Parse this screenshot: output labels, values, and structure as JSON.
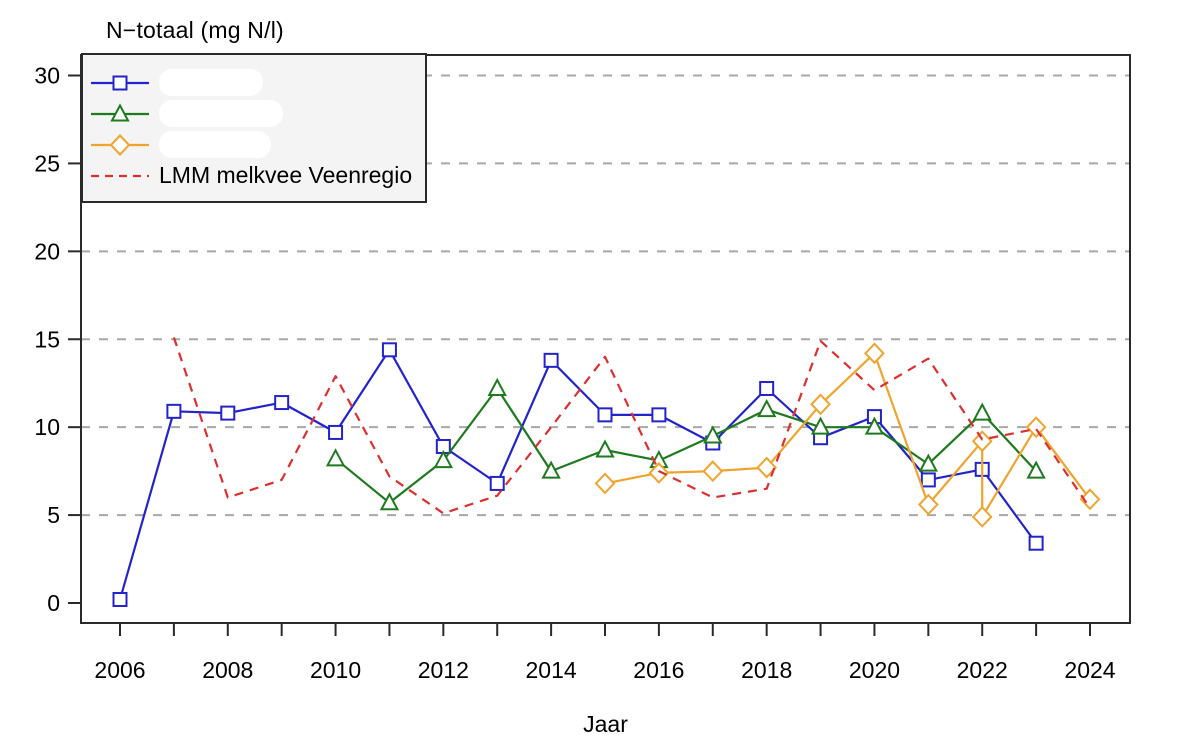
{
  "title": "N−totaal (mg N/l)",
  "xlabel": "Jaar",
  "legend": {
    "items": [
      {
        "label": "",
        "redacted": true,
        "color": "#2323cc",
        "marker": "square",
        "line": "solid",
        "blob_width": 104
      },
      {
        "label": "",
        "redacted": true,
        "color": "#1e7a1e",
        "marker": "triangle",
        "line": "solid",
        "blob_width": 124
      },
      {
        "label": "",
        "redacted": true,
        "color": "#efa42d",
        "marker": "diamond",
        "line": "solid",
        "blob_width": 112
      },
      {
        "label": "LMM melkvee Veenregio",
        "redacted": false,
        "color": "#dd2f2f",
        "marker": "none",
        "line": "dashed",
        "blob_width": 0
      }
    ]
  },
  "chart_data": {
    "type": "line",
    "title": "N−totaal (mg N/l)",
    "xlabel": "Jaar",
    "ylabel": "N-totaal (mg N/l)",
    "xlim": [
      2006,
      2024
    ],
    "ylim": [
      0,
      30
    ],
    "grid": "horizontal dashed gray lines at y = 5,10,15,20,25,30",
    "legend_position": "top-left",
    "x_ticks": [
      2006,
      2007,
      2008,
      2009,
      2010,
      2011,
      2012,
      2013,
      2014,
      2015,
      2016,
      2017,
      2018,
      2019,
      2020,
      2021,
      2022,
      2023,
      2024
    ],
    "x_tick_labels": [
      2006,
      2008,
      2010,
      2012,
      2014,
      2016,
      2018,
      2020,
      2022,
      2024
    ],
    "y_ticks": [
      0,
      5,
      10,
      15,
      20,
      25,
      30
    ],
    "grid_y": [
      5,
      10,
      15,
      20,
      25,
      30
    ],
    "colors": {
      "axis": "#2a2a2a",
      "grid": "#a8a8a8",
      "legend_bg": "#f4f4f4"
    },
    "series": [
      {
        "name": "serie-1-blauw (label whited out)",
        "marker": "square",
        "color": "#2323cc",
        "dash": false,
        "points": [
          [
            2006,
            0.2
          ],
          [
            2007,
            10.9
          ],
          [
            2008,
            10.8
          ],
          [
            2009,
            11.4
          ],
          [
            2010,
            9.7
          ],
          [
            2011,
            14.4
          ],
          [
            2012,
            8.9
          ],
          [
            2013,
            6.8
          ],
          [
            2014,
            13.8
          ],
          [
            2015,
            10.7
          ],
          [
            2016,
            10.7
          ],
          [
            2017,
            9.1
          ],
          [
            2018,
            12.2
          ],
          [
            2019,
            9.4
          ],
          [
            2020,
            10.6
          ],
          [
            2021,
            7.0
          ],
          [
            2022,
            7.6
          ],
          [
            2023,
            3.4
          ]
        ]
      },
      {
        "name": "serie-2-groen (label whited out)",
        "marker": "triangle",
        "color": "#1e7a1e",
        "dash": false,
        "points": [
          [
            2010,
            8.2
          ],
          [
            2011,
            5.7
          ],
          [
            2012,
            8.1
          ],
          [
            2013,
            12.2
          ],
          [
            2014,
            7.5
          ],
          [
            2015,
            8.7
          ],
          [
            2016,
            8.1
          ],
          [
            2017,
            9.5
          ],
          [
            2018,
            11.0
          ],
          [
            2019,
            10.0
          ],
          [
            2020,
            10.0
          ],
          [
            2021,
            7.9
          ],
          [
            2022,
            10.8
          ],
          [
            2023,
            7.5
          ]
        ]
      },
      {
        "name": "serie-3-oranje (label whited out)",
        "marker": "diamond",
        "color": "#efa42d",
        "dash": false,
        "points": [
          [
            2015,
            6.8
          ],
          [
            2016,
            7.4
          ],
          [
            2017,
            7.5
          ],
          [
            2018,
            7.7
          ],
          [
            2019,
            11.3
          ],
          [
            2020,
            14.2
          ],
          [
            2021,
            5.6
          ],
          [
            2022,
            9.2
          ],
          [
            2022,
            4.9
          ],
          [
            2023,
            10.0
          ],
          [
            2024,
            5.9
          ]
        ]
      },
      {
        "name": "LMM melkvee Veenregio",
        "marker": "none",
        "color": "#dd2f2f",
        "dash": true,
        "points": [
          [
            2007,
            15.1
          ],
          [
            2008,
            6.0
          ],
          [
            2009,
            7.0
          ],
          [
            2010,
            12.9
          ],
          [
            2011,
            7.2
          ],
          [
            2012,
            5.1
          ],
          [
            2013,
            6.1
          ],
          [
            2014,
            10.0
          ],
          [
            2015,
            14.0
          ],
          [
            2016,
            7.5
          ],
          [
            2017,
            6.0
          ],
          [
            2018,
            6.5
          ],
          [
            2019,
            14.9
          ],
          [
            2020,
            12.1
          ],
          [
            2021,
            13.9
          ],
          [
            2022,
            9.3
          ],
          [
            2023,
            9.9
          ],
          [
            2024,
            5.4
          ]
        ]
      }
    ]
  }
}
